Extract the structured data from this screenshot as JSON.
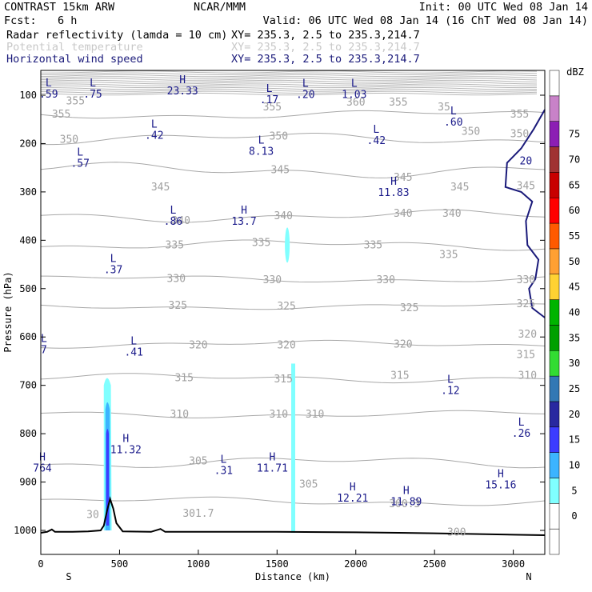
{
  "header": {
    "title": "CONTRAST 15km ARW",
    "org": "NCAR/MMM",
    "init": "Init: 00 UTC Wed 08 Jan 14",
    "fcst_label": "Fcst:",
    "fcst_value": "6 h",
    "valid": "Valid: 06 UTC Wed 08 Jan 14 (16 ChT Wed 08 Jan 14)",
    "fields": [
      {
        "name": "Radar reflectivity (lamda = 10 cm)",
        "xy": "XY= 235.3,  2.5 to 235.3,214.7",
        "style": "black"
      },
      {
        "name": "Potential temperature",
        "xy": "XY= 235.3,  2.5 to 235.3,214.7",
        "style": "grey"
      },
      {
        "name": "Horizontal wind speed",
        "xy": "XY= 235.3,  2.5 to 235.3,214.7",
        "style": "blue"
      }
    ]
  },
  "chart_data": {
    "type": "cross-section",
    "xlabel": "Distance (km)",
    "ylabel": "Pressure (hPa)",
    "xlim": [
      0,
      3200
    ],
    "ylim": [
      1050,
      50
    ],
    "x_ticks": [
      0,
      500,
      1000,
      1500,
      2000,
      2500,
      3000
    ],
    "y_ticks": [
      100,
      200,
      300,
      400,
      500,
      600,
      700,
      800,
      900,
      1000
    ],
    "x_end_labels": {
      "left": "S",
      "right": "N"
    },
    "colorbar": {
      "unit": "dBZ",
      "levels": [
        0,
        5,
        10,
        15,
        20,
        25,
        30,
        35,
        40,
        45,
        50,
        55,
        60,
        65,
        70,
        75
      ],
      "colors": [
        "#ffffff",
        "#ffffff",
        "#80ffff",
        "#3cb4ff",
        "#3c3cff",
        "#2828a0",
        "#3278b4",
        "#32dc32",
        "#00a000",
        "#00b400",
        "#ffd232",
        "#ffa032",
        "#ff5a00",
        "#ff0000",
        "#c80000",
        "#a03232",
        "#8c1eb4",
        "#c882c8",
        "#ffffff"
      ]
    },
    "theta_labels": [
      {
        "text": "355",
        "x": 220,
        "p": 112
      },
      {
        "text": "355",
        "x": 1470,
        "p": 125
      },
      {
        "text": "360",
        "x": 2000,
        "p": 115
      },
      {
        "text": "355",
        "x": 2270,
        "p": 115
      },
      {
        "text": "35",
        "x": 2560,
        "p": 125
      },
      {
        "text": "355",
        "x": 3040,
        "p": 140
      },
      {
        "text": "355",
        "x": 130,
        "p": 140
      },
      {
        "text": "350",
        "x": 180,
        "p": 192
      },
      {
        "text": "350",
        "x": 1510,
        "p": 185
      },
      {
        "text": "350",
        "x": 2730,
        "p": 175
      },
      {
        "text": "350",
        "x": 3040,
        "p": 180
      },
      {
        "text": "345",
        "x": 1520,
        "p": 255
      },
      {
        "text": "345",
        "x": 760,
        "p": 290
      },
      {
        "text": "345",
        "x": 2300,
        "p": 270
      },
      {
        "text": "345",
        "x": 2660,
        "p": 290
      },
      {
        "text": "345",
        "x": 3080,
        "p": 288
      },
      {
        "text": "340",
        "x": 890,
        "p": 360
      },
      {
        "text": "340",
        "x": 1540,
        "p": 350
      },
      {
        "text": "340",
        "x": 2300,
        "p": 345
      },
      {
        "text": "340",
        "x": 2610,
        "p": 345
      },
      {
        "text": "335",
        "x": 850,
        "p": 410
      },
      {
        "text": "335",
        "x": 1400,
        "p": 405
      },
      {
        "text": "335",
        "x": 2110,
        "p": 410
      },
      {
        "text": "335",
        "x": 2590,
        "p": 430
      },
      {
        "text": "330",
        "x": 860,
        "p": 480
      },
      {
        "text": "330",
        "x": 1470,
        "p": 482
      },
      {
        "text": "330",
        "x": 2190,
        "p": 482
      },
      {
        "text": "330",
        "x": 3080,
        "p": 482
      },
      {
        "text": "325",
        "x": 870,
        "p": 535
      },
      {
        "text": "325",
        "x": 1560,
        "p": 537
      },
      {
        "text": "325",
        "x": 2340,
        "p": 540
      },
      {
        "text": "325",
        "x": 3080,
        "p": 532
      },
      {
        "text": "320",
        "x": 1000,
        "p": 617
      },
      {
        "text": "320",
        "x": 1560,
        "p": 617
      },
      {
        "text": "320",
        "x": 2300,
        "p": 615
      },
      {
        "text": "320",
        "x": 3090,
        "p": 595
      },
      {
        "text": "315",
        "x": 910,
        "p": 685
      },
      {
        "text": "315",
        "x": 1540,
        "p": 687
      },
      {
        "text": "315",
        "x": 2280,
        "p": 680
      },
      {
        "text": "315",
        "x": 3080,
        "p": 637
      },
      {
        "text": "310",
        "x": 3090,
        "p": 680
      },
      {
        "text": "310",
        "x": 880,
        "p": 760
      },
      {
        "text": "310",
        "x": 1510,
        "p": 760
      },
      {
        "text": "310",
        "x": 1740,
        "p": 760
      },
      {
        "text": "305",
        "x": 1000,
        "p": 857
      },
      {
        "text": "305",
        "x": 1700,
        "p": 905
      },
      {
        "text": "300",
        "x": 2640,
        "p": 1004
      },
      {
        "text": "301.7",
        "x": 1000,
        "p": 965
      },
      {
        "text": "300.3",
        "x": 2310,
        "p": 945
      },
      {
        "text": "30",
        "x": 330,
        "p": 968
      }
    ],
    "extrema": [
      {
        "type": "L",
        "value": ".59",
        "x": 50,
        "p": 87
      },
      {
        "type": "L",
        "value": ".75",
        "x": 330,
        "p": 87
      },
      {
        "type": "H",
        "value": "23.33",
        "x": 900,
        "p": 80
      },
      {
        "type": "L",
        "value": ".17",
        "x": 1450,
        "p": 98
      },
      {
        "type": "L",
        "value": ".20",
        "x": 1680,
        "p": 88
      },
      {
        "type": "L",
        "value": "1.03",
        "x": 1990,
        "p": 88
      },
      {
        "type": "L",
        "value": ".60",
        "x": 2620,
        "p": 145
      },
      {
        "type": "L",
        "value": ".42",
        "x": 720,
        "p": 172
      },
      {
        "type": "L",
        "value": ".42",
        "x": 2130,
        "p": 183
      },
      {
        "type": "L",
        "value": "8.13",
        "x": 1400,
        "p": 205
      },
      {
        "type": "L",
        "value": ".57",
        "x": 250,
        "p": 230
      },
      {
        "type": "H",
        "value": "11.83",
        "x": 2240,
        "p": 290
      },
      {
        "type": "L",
        "value": ".86",
        "x": 840,
        "p": 350
      },
      {
        "type": "H",
        "value": "13.7",
        "x": 1290,
        "p": 350
      },
      {
        "type": "L",
        "value": ".37",
        "x": 460,
        "p": 450
      },
      {
        "type": "L",
        "value": ".41",
        "x": 590,
        "p": 620
      },
      {
        "type": "L",
        "value": ".12",
        "x": 2600,
        "p": 700
      },
      {
        "type": "L",
        "value": ".26",
        "x": 3050,
        "p": 788
      },
      {
        "type": "H",
        "value": "11.32",
        "x": 540,
        "p": 822
      },
      {
        "type": "H",
        "value": "764",
        "x": 10,
        "p": 860
      },
      {
        "type": "L",
        "value": ".31",
        "x": 1160,
        "p": 865
      },
      {
        "type": "H",
        "value": "11.71",
        "x": 1470,
        "p": 860
      },
      {
        "type": "H",
        "value": "15.16",
        "x": 2920,
        "p": 895
      },
      {
        "type": "H",
        "value": "12.21",
        "x": 1980,
        "p": 922
      },
      {
        "type": "H",
        "value": "11.89",
        "x": 2320,
        "p": 930
      },
      {
        "type": "L",
        "value": "7",
        "x": 20,
        "p": 615
      }
    ],
    "wind_contour_labels": [
      {
        "text": "20",
        "x": 3080,
        "p": 243
      }
    ],
    "terrain": [
      [
        0,
        1005
      ],
      [
        40,
        1003
      ],
      [
        70,
        998
      ],
      [
        90,
        1003
      ],
      [
        120,
        1003
      ],
      [
        200,
        1003
      ],
      [
        300,
        1002
      ],
      [
        380,
        1000
      ],
      [
        400,
        990
      ],
      [
        420,
        960
      ],
      [
        440,
        935
      ],
      [
        460,
        955
      ],
      [
        480,
        985
      ],
      [
        520,
        1002
      ],
      [
        700,
        1003
      ],
      [
        760,
        997
      ],
      [
        790,
        1003
      ],
      [
        1500,
        1003
      ],
      [
        2000,
        1004
      ],
      [
        2500,
        1006
      ],
      [
        3000,
        1009
      ],
      [
        3200,
        1010
      ]
    ]
  }
}
